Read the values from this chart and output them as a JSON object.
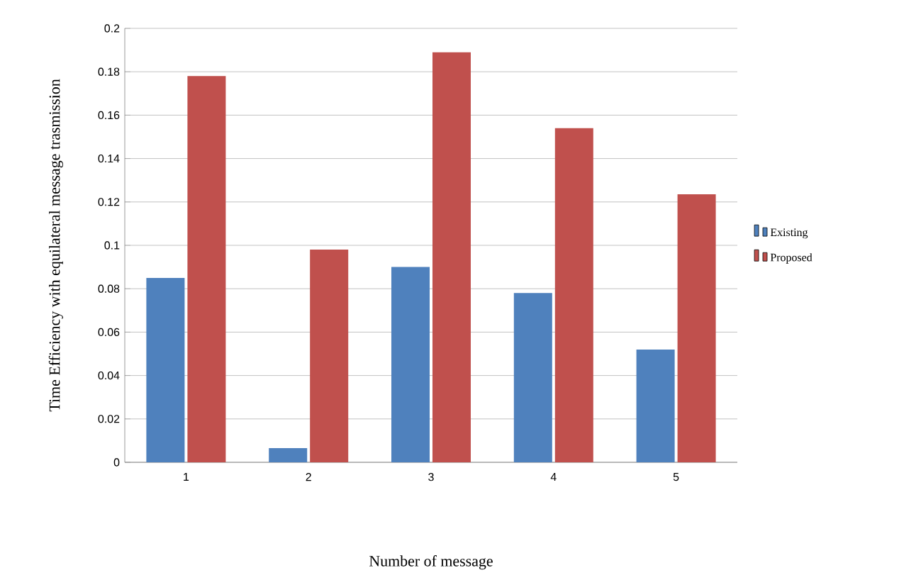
{
  "chart_data": {
    "type": "bar",
    "xlabel": "Number of message",
    "ylabel": "Time Efficiency with equilateral message trasmission",
    "categories": [
      "1",
      "2",
      "3",
      "4",
      "5"
    ],
    "series": [
      {
        "name": "Existing",
        "color": "#4f81bd",
        "values": [
          0.085,
          0.0065,
          0.09,
          0.078,
          0.052
        ]
      },
      {
        "name": "Proposed",
        "color": "#c0504d",
        "values": [
          0.178,
          0.098,
          0.189,
          0.154,
          0.1235
        ]
      }
    ],
    "ylim": [
      0,
      0.2
    ],
    "yticks": [
      0,
      0.02,
      0.04,
      0.06,
      0.08,
      0.1,
      0.12,
      0.14,
      0.16,
      0.18,
      0.2
    ],
    "grid": "y",
    "legend": "right"
  }
}
